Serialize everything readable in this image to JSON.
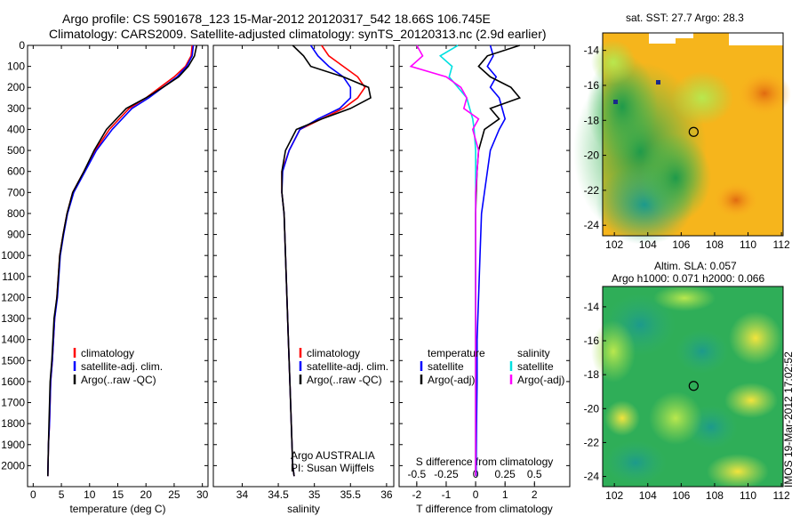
{
  "header": {
    "title_line1": "Argo profile: CS 5901678_123 15-Mar-2012 20120317_542 18.66S 106.745E",
    "title_line2": "Climatology: CARS2009. Satellite-adjusted climatology: synTS_20120313.nc (2.9d earlier)"
  },
  "maps": {
    "sst_title": "sat. SST: 27.7 Argo: 28.3",
    "sla_title1": "Altim. SLA: 0.057",
    "sla_title2": "Argo h1000: 0.071 h2000: 0.066",
    "lat_ticks": [
      -14,
      -16,
      -18,
      -20,
      -22,
      -24
    ],
    "lon_ticks": [
      102,
      104,
      106,
      108,
      110,
      112
    ],
    "argo_lon": 106.745,
    "argo_lat": -18.66
  },
  "footer": {
    "stamp": "IMOS 19-Mar-2012 17:02:52"
  },
  "colors": {
    "climatology": "#ff0000",
    "satellite": "#0000ff",
    "argo": "#000000",
    "salinity_satellite": "#00e0e0",
    "salinity_argo": "#ff00ff"
  },
  "chart_data": [
    {
      "type": "line",
      "title": "temperature profile",
      "xlabel": "temperature (deg C)",
      "ylabel": "",
      "xlim": [
        -1,
        31
      ],
      "ylim": [
        2100,
        0
      ],
      "xticks": [
        0,
        5,
        10,
        15,
        20,
        25,
        30
      ],
      "yticks": [
        0,
        100,
        200,
        300,
        400,
        500,
        600,
        700,
        800,
        900,
        1000,
        1100,
        1200,
        1300,
        1400,
        1500,
        1600,
        1700,
        1800,
        1900,
        2000
      ],
      "legend": [
        "climatology",
        "satellite-adj. clim.",
        "Argo(..raw -QC)"
      ],
      "legend_placement": "lower-right",
      "series": [
        {
          "name": "climatology",
          "color": "#ff0000",
          "x": [
            28.2,
            28,
            27,
            25,
            22.5,
            20,
            17,
            13.5,
            11,
            9,
            7,
            6,
            5.3,
            4.7,
            4.2,
            3.8,
            3.4,
            3.1,
            2.9,
            2.7,
            2.6
          ],
          "y": [
            0,
            50,
            100,
            150,
            200,
            250,
            300,
            400,
            500,
            600,
            700,
            800,
            900,
            1000,
            1200,
            1300,
            1500,
            1600,
            1800,
            1900,
            2050
          ]
        },
        {
          "name": "satellite-adj. clim.",
          "color": "#0000ff",
          "x": [
            28.4,
            28.2,
            27.2,
            25.5,
            23,
            20.5,
            17.5,
            14,
            11.2,
            9.2,
            7.2,
            6.1,
            5.4,
            4.8,
            4.3,
            3.8,
            3.4,
            3.1,
            2.9,
            2.7,
            2.6
          ],
          "y": [
            0,
            50,
            100,
            150,
            200,
            250,
            300,
            400,
            500,
            600,
            700,
            800,
            900,
            1000,
            1200,
            1300,
            1500,
            1600,
            1800,
            1900,
            2050
          ]
        },
        {
          "name": "Argo(..raw -QC)",
          "color": "#000000",
          "x": [
            29,
            28.6,
            27.5,
            25.8,
            23,
            20,
            16.5,
            13,
            10.8,
            9,
            7,
            6,
            5.3,
            4.7,
            4.2,
            3.7,
            3.3,
            3,
            2.8,
            2.7,
            2.6
          ],
          "y": [
            0,
            50,
            100,
            150,
            200,
            250,
            300,
            400,
            500,
            600,
            700,
            800,
            900,
            1000,
            1200,
            1300,
            1500,
            1600,
            1800,
            1900,
            2050
          ]
        }
      ]
    },
    {
      "type": "line",
      "title": "salinity profile",
      "xlabel": "salinity",
      "ylabel": "",
      "xlim": [
        33.6,
        36.1
      ],
      "ylim": [
        2100,
        0
      ],
      "xticks": [
        34,
        34.5,
        35,
        35.5,
        36
      ],
      "xticklabels": [
        "34",
        "34.5",
        "35",
        "35.5",
        "36"
      ],
      "legend": [
        "climatology",
        "satellite-adj. clim.",
        "Argo(..raw -QC)"
      ],
      "legend_placement": "lower-right",
      "annotations": [
        "Argo AUSTRALIA",
        "PI: Susan Wijffels"
      ],
      "series": [
        {
          "name": "climatology",
          "color": "#ff0000",
          "x": [
            35.1,
            35.2,
            35.4,
            35.6,
            35.7,
            35.6,
            35.4,
            35.1,
            34.8,
            34.65,
            34.55,
            34.55,
            34.58,
            34.6,
            34.62,
            34.64,
            34.66,
            34.68,
            34.7,
            34.72
          ],
          "y": [
            0,
            50,
            100,
            150,
            200,
            250,
            300,
            350,
            400,
            500,
            600,
            700,
            800,
            1000,
            1200,
            1400,
            1600,
            1800,
            2000,
            2050
          ]
        },
        {
          "name": "satellite-adj. clim.",
          "color": "#0000ff",
          "x": [
            34.95,
            35.05,
            35.2,
            35.4,
            35.5,
            35.5,
            35.35,
            35.05,
            34.8,
            34.65,
            34.56,
            34.55,
            34.58,
            34.6,
            34.62,
            34.64,
            34.66,
            34.68,
            34.7,
            34.72
          ],
          "y": [
            0,
            50,
            100,
            150,
            200,
            250,
            300,
            350,
            400,
            500,
            600,
            700,
            800,
            1000,
            1200,
            1400,
            1600,
            1800,
            2000,
            2050
          ]
        },
        {
          "name": "Argo(..raw -QC)",
          "color": "#000000",
          "x": [
            34.7,
            34.85,
            34.95,
            35.4,
            35.75,
            35.78,
            35.5,
            35.1,
            34.75,
            34.6,
            34.55,
            34.55,
            34.58,
            34.6,
            34.62,
            34.64,
            34.66,
            34.68,
            34.7,
            34.72
          ],
          "y": [
            0,
            50,
            100,
            150,
            200,
            250,
            300,
            350,
            400,
            500,
            600,
            700,
            800,
            1000,
            1200,
            1400,
            1600,
            1800,
            2000,
            2050
          ]
        }
      ]
    },
    {
      "type": "line",
      "title": "difference from climatology",
      "xlabel": "T difference from climatology",
      "xlabel_top": "S difference from climatology",
      "ylabel": "",
      "xlim": [
        -2.6,
        3.2
      ],
      "ylim": [
        2100,
        0
      ],
      "xticks": [
        -2,
        -1,
        0,
        1,
        2
      ],
      "xticks_top": [
        -0.5,
        -0.25,
        0,
        0.25,
        0.5
      ],
      "legend": [
        "temperature",
        "satellite",
        "Argo(-adj)",
        "salinity",
        "satellite",
        "Argo(-adj)"
      ],
      "legend_placement": "lower-center",
      "series": [
        {
          "name": "temperature satellite",
          "color": "#0000ff",
          "x": [
            0.5,
            0.6,
            0.4,
            0.7,
            0.5,
            0.8,
            0.9,
            1.0,
            0.8,
            0.5,
            0.4,
            0.3,
            0.2,
            0.15,
            0.1,
            0.05,
            0.05,
            0.03,
            0.02,
            0.02
          ],
          "y": [
            0,
            50,
            100,
            150,
            200,
            250,
            300,
            350,
            400,
            500,
            600,
            700,
            800,
            1000,
            1200,
            1400,
            1600,
            1800,
            2000,
            2050
          ]
        },
        {
          "name": "temperature Argo(-adj)",
          "color": "#000000",
          "x": [
            1.5,
            0.4,
            0.1,
            0.5,
            1.2,
            1.5,
            0.5,
            0.8,
            0.3,
            0.1,
            0.05,
            0.02,
            0.0,
            0.0,
            0.0,
            0.0,
            0.0,
            0.0,
            0.0,
            0.0
          ],
          "y": [
            0,
            50,
            100,
            150,
            200,
            250,
            300,
            350,
            400,
            500,
            600,
            700,
            800,
            1000,
            1200,
            1400,
            1600,
            1800,
            2000,
            2050
          ]
        },
        {
          "name": "salinity satellite",
          "color": "#00e0e0",
          "x": [
            -0.6,
            -1.2,
            -0.8,
            -0.9,
            -0.6,
            -0.3,
            -0.2,
            -0.1,
            -0.05,
            0.0,
            0.0,
            0.0,
            0.0,
            0.0,
            0.0,
            0.0,
            0.0,
            0.0,
            0.0,
            0.0
          ],
          "y": [
            0,
            50,
            100,
            150,
            200,
            250,
            300,
            350,
            400,
            500,
            600,
            700,
            800,
            1000,
            1200,
            1400,
            1600,
            1800,
            2000,
            2050
          ]
        },
        {
          "name": "salinity Argo(-adj)",
          "color": "#ff00ff",
          "x": [
            -2.0,
            -1.8,
            -2.2,
            -1.0,
            -0.5,
            -0.3,
            -0.4,
            0.1,
            -0.1,
            0.1,
            0.05,
            0.0,
            0.0,
            0.0,
            0.0,
            0.0,
            0.0,
            0.0,
            0.0,
            0.0
          ],
          "y": [
            0,
            50,
            100,
            150,
            200,
            250,
            300,
            350,
            400,
            500,
            600,
            700,
            800,
            1000,
            1200,
            1400,
            1600,
            1800,
            2000,
            2050
          ]
        }
      ]
    }
  ]
}
